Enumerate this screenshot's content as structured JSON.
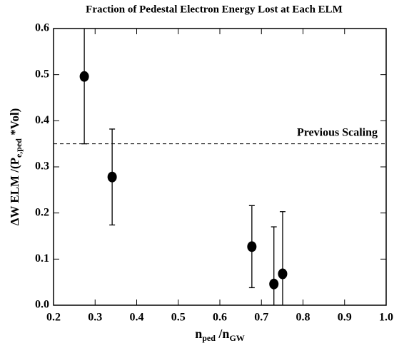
{
  "chart_data": {
    "type": "scatter",
    "title": "Fraction of Pedestal Electron Energy Lost at Each ELM",
    "x_label": [
      {
        "text": "n"
      },
      {
        "text": "ped",
        "sub": true
      },
      {
        "text": " /n"
      },
      {
        "text": "GW",
        "sub": true
      }
    ],
    "y_label": [
      {
        "text": "ΔW ELM /(P"
      },
      {
        "text": "e,ped",
        "sub": true
      },
      {
        "text": " *Vol)"
      }
    ],
    "x": [
      0.274,
      0.341,
      0.677,
      0.73,
      0.751
    ],
    "values": [
      0.496,
      0.278,
      0.127,
      0.046,
      0.068
    ],
    "errors": [
      0.146,
      0.104,
      0.089,
      0.124,
      0.135
    ],
    "color": "#000000",
    "xlim": [
      0.2,
      1.0
    ],
    "xticks": [
      0.2,
      0.3,
      0.4,
      0.5,
      0.6,
      0.7,
      0.8,
      0.9,
      {
        "value": 1,
        "label": "1.0"
      }
    ],
    "ylim": [
      0,
      0.6
    ],
    "yticks": [
      {
        "value": 0,
        "label": "0.0"
      },
      0.1,
      0.2,
      0.3,
      0.4,
      0.5,
      0.6
    ],
    "reference_line": {
      "value": 0.35,
      "label": "Previous Scaling"
    }
  }
}
